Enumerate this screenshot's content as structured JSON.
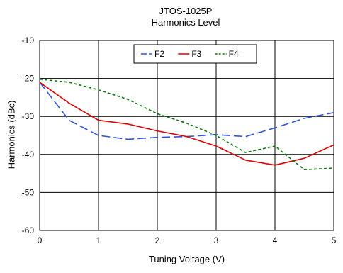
{
  "chart_data": {
    "type": "line",
    "title": "JTOS-1025P",
    "subtitle": "Harmonics Level",
    "xlabel": "Tuning Voltage (V)",
    "ylabel": "Harmonics (dBc)",
    "xlim": [
      0,
      5
    ],
    "ylim": [
      -60,
      -10
    ],
    "xticks": [
      0,
      1,
      2,
      3,
      4,
      5
    ],
    "yticks": [
      -60,
      -50,
      -40,
      -30,
      -20,
      -10
    ],
    "grid": true,
    "legend_position": "top-center",
    "x": [
      0,
      0.5,
      1,
      1.5,
      2,
      2.5,
      3,
      3.5,
      4,
      4.5,
      5
    ],
    "series": [
      {
        "name": "F2",
        "color": "#3355dd",
        "dash": "long-dash",
        "values": [
          -21,
          -31,
          -35,
          -36,
          -35.5,
          -35.3,
          -34.8,
          -35.3,
          -33,
          -30.5,
          -29
        ]
      },
      {
        "name": "F3",
        "color": "#dd0000",
        "dash": "solid",
        "values": [
          -21,
          -26.5,
          -31,
          -32,
          -33.8,
          -35.3,
          -37.8,
          -41.5,
          -42.8,
          -41,
          -37.5
        ]
      },
      {
        "name": "F4",
        "color": "#117711",
        "dash": "short-dash",
        "values": [
          -20.2,
          -21,
          -23,
          -25.5,
          -29.3,
          -31.8,
          -35,
          -39.5,
          -37.8,
          -44,
          -43.6
        ]
      }
    ]
  }
}
